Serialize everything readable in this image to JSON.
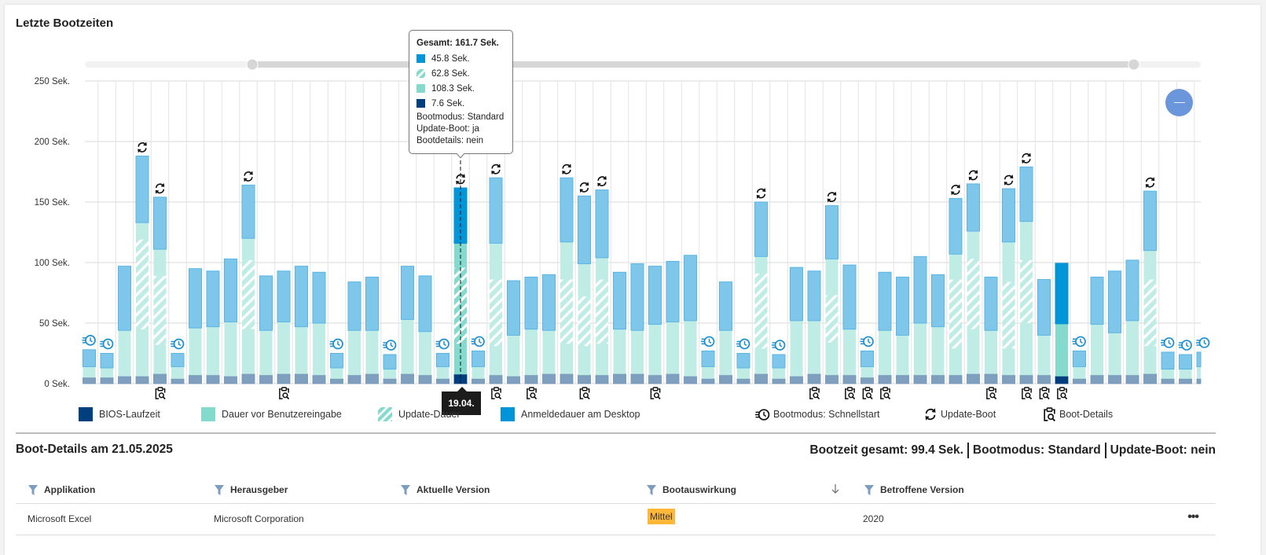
{
  "panel": {
    "title": "Letzte Bootzeiten"
  },
  "tooltip": {
    "title": "Gesamt: 161.7 Sek.",
    "rows": [
      {
        "series": "Anmeldedauer am Desktop",
        "value": "45.8 Sek."
      },
      {
        "series": "Update-Dauer",
        "value": "62.8 Sek."
      },
      {
        "series": "Dauer vor Benutzereingabe",
        "value": "108.3 Sek."
      },
      {
        "series": "BIOS-Laufzeit",
        "value": "7.6 Sek."
      }
    ],
    "lines": [
      "Bootmodus: Standard",
      "Update-Boot: ja",
      "Bootdetails: nein"
    ]
  },
  "hover_date": "19.04.",
  "zoom_out_button": {
    "icon": "minus-icon"
  },
  "colors": {
    "bios": "#7f9fbf",
    "bios_active": "#003f7f",
    "before": "#bfece5",
    "before_active": "#84dbcd",
    "desktop": "#7fc7ea",
    "desktop_active": "#0095d9",
    "desktop_border": "#5ab5e3",
    "fast_icon": "#1d8fd0",
    "badge_mittel": "#ffb83a",
    "zoom_button": "#6b96dc"
  },
  "legend": [
    {
      "name": "BIOS-Laufzeit",
      "swatch": "bios"
    },
    {
      "name": "Dauer vor Benutzereingabe",
      "swatch": "before"
    },
    {
      "name": "Update-Dauer",
      "swatch": "hatch"
    },
    {
      "name": "Anmeldedauer am Desktop",
      "swatch": "desktop"
    },
    {
      "name": "Bootmodus: Schnellstart",
      "icon": "fast-boot-icon"
    },
    {
      "name": "Update-Boot",
      "icon": "update-icon"
    },
    {
      "name": "Boot-Details",
      "icon": "boot-details-icon"
    }
  ],
  "chart_data": {
    "type": "bar",
    "stacked": true,
    "title": "Letzte Bootzeiten",
    "ylabel": "",
    "ylim": [
      0,
      250
    ],
    "yticks": [
      "0 Sek.",
      "50 Sek.",
      "100 Sek.",
      "150 Sek.",
      "200 Sek.",
      "250 Sek."
    ],
    "ytick_values": [
      0,
      50,
      100,
      150,
      200,
      250
    ],
    "grid": true,
    "slider_range": [
      0.15,
      0.94
    ],
    "highlighted_index": 21,
    "selected_index": 55,
    "series_names": [
      "BIOS-Laufzeit",
      "Dauer vor Benutzereingabe",
      "Update-Dauer",
      "Anmeldedauer am Desktop"
    ],
    "bars": [
      {
        "bios": 5,
        "before": 14,
        "total": 28,
        "fast": true
      },
      {
        "bios": 5,
        "before": 13,
        "total": 25,
        "fast": true
      },
      {
        "bios": 6,
        "before": 44,
        "total": 97
      },
      {
        "bios": 6,
        "before": 133,
        "total": 188,
        "update": [
          45,
          119
        ],
        "update_boot": true
      },
      {
        "bios": 8,
        "before": 111,
        "total": 154,
        "update": [
          32,
          89
        ],
        "update_boot": true,
        "details": true
      },
      {
        "bios": 4,
        "before": 14,
        "total": 25,
        "fast": true
      },
      {
        "bios": 7,
        "before": 46,
        "total": 95
      },
      {
        "bios": 7,
        "before": 47,
        "total": 93
      },
      {
        "bios": 6,
        "before": 51,
        "total": 103
      },
      {
        "bios": 8,
        "before": 120,
        "total": 164,
        "update": [
          45,
          102
        ],
        "update_boot": true
      },
      {
        "bios": 7,
        "before": 44,
        "total": 89
      },
      {
        "bios": 8,
        "before": 51,
        "total": 93,
        "details": true
      },
      {
        "bios": 8,
        "before": 47,
        "total": 97
      },
      {
        "bios": 7,
        "before": 50,
        "total": 92
      },
      {
        "bios": 4,
        "before": 13,
        "total": 25,
        "fast": true
      },
      {
        "bios": 7,
        "before": 44,
        "total": 84
      },
      {
        "bios": 8,
        "before": 44,
        "total": 88
      },
      {
        "bios": 4,
        "before": 12,
        "total": 24,
        "fast": true
      },
      {
        "bios": 8,
        "before": 53,
        "total": 97
      },
      {
        "bios": 7,
        "before": 43,
        "total": 89
      },
      {
        "bios": 4,
        "before": 14,
        "total": 25,
        "fast": true
      },
      {
        "bios": 7.6,
        "before": 115.9,
        "total": 161.7,
        "update": [
          33,
          95.8
        ],
        "update_boot": true
      },
      {
        "bios": 4,
        "before": 14,
        "total": 27,
        "fast": true
      },
      {
        "bios": 7,
        "before": 116,
        "total": 170,
        "update": [
          31,
          86
        ],
        "update_boot": true,
        "details": true
      },
      {
        "bios": 6,
        "before": 40,
        "total": 85
      },
      {
        "bios": 7,
        "before": 45,
        "total": 88,
        "details": true
      },
      {
        "bios": 8,
        "before": 44,
        "total": 90
      },
      {
        "bios": 8,
        "before": 117,
        "total": 170,
        "update": [
          33,
          86
        ],
        "update_boot": true
      },
      {
        "bios": 7,
        "before": 99,
        "total": 155,
        "update": [
          31,
          72
        ],
        "update_boot": true,
        "details": true
      },
      {
        "bios": 7,
        "before": 104,
        "total": 160,
        "update": [
          33,
          86
        ],
        "update_boot": true
      },
      {
        "bios": 8,
        "before": 45,
        "total": 92
      },
      {
        "bios": 8,
        "before": 44,
        "total": 99
      },
      {
        "bios": 7,
        "before": 49,
        "total": 97,
        "details": true
      },
      {
        "bios": 8,
        "before": 51,
        "total": 101
      },
      {
        "bios": 6,
        "before": 52,
        "total": 106
      },
      {
        "bios": 4,
        "before": 14,
        "total": 27,
        "fast": true
      },
      {
        "bios": 7,
        "before": 44,
        "total": 84
      },
      {
        "bios": 4,
        "before": 13,
        "total": 25,
        "fast": true
      },
      {
        "bios": 8,
        "before": 105,
        "total": 150,
        "update": [
          29,
          91
        ],
        "update_boot": true
      },
      {
        "bios": 4,
        "before": 13,
        "total": 24,
        "fast": true
      },
      {
        "bios": 6,
        "before": 52,
        "total": 96
      },
      {
        "bios": 8,
        "before": 52,
        "total": 93,
        "details": true
      },
      {
        "bios": 7,
        "before": 103,
        "total": 147,
        "update": [
          34,
          73
        ],
        "update_boot": true
      },
      {
        "bios": 7,
        "before": 45,
        "total": 98,
        "details": true
      },
      {
        "bios": 5,
        "before": 14,
        "total": 27,
        "fast": true,
        "details": true
      },
      {
        "bios": 7,
        "before": 44,
        "total": 92,
        "details": true
      },
      {
        "bios": 7,
        "before": 40,
        "total": 88
      },
      {
        "bios": 7,
        "before": 50,
        "total": 105
      },
      {
        "bios": 7,
        "before": 47,
        "total": 90
      },
      {
        "bios": 7,
        "before": 107,
        "total": 153,
        "update": [
          29,
          86
        ],
        "update_boot": true
      },
      {
        "bios": 8,
        "before": 126,
        "total": 165,
        "update": [
          45,
          103
        ],
        "update_boot": true
      },
      {
        "bios": 8,
        "before": 44,
        "total": 88,
        "details": true
      },
      {
        "bios": 7,
        "before": 117,
        "total": 161,
        "update": [
          29,
          84
        ],
        "update_boot": true
      },
      {
        "bios": 7,
        "before": 134,
        "total": 179,
        "update": [
          50,
          102
        ],
        "update_boot": true,
        "details": true
      },
      {
        "bios": 7,
        "before": 40,
        "total": 86,
        "details": true
      },
      {
        "bios": 6,
        "before": 49.4,
        "total": 99.4,
        "details": true
      },
      {
        "bios": 4,
        "before": 14,
        "total": 27,
        "fast": true
      },
      {
        "bios": 7,
        "before": 49,
        "total": 88
      },
      {
        "bios": 7,
        "before": 42,
        "total": 93
      },
      {
        "bios": 7,
        "before": 52,
        "total": 102
      },
      {
        "bios": 8,
        "before": 110,
        "total": 159,
        "update": [
          31,
          86
        ],
        "update_boot": true
      },
      {
        "bios": 4,
        "before": 12,
        "total": 26,
        "fast": true
      },
      {
        "bios": 4,
        "before": 12,
        "total": 24,
        "fast": true
      },
      {
        "bios": 4,
        "before": 14,
        "total": 26,
        "fast": true
      }
    ]
  },
  "details": {
    "title": "Boot-Details am 21.05.2025",
    "summary": [
      "Bootzeit gesamt: 99.4 Sek.",
      "Bootmodus: Standard",
      "Update-Boot: nein"
    ],
    "columns": [
      {
        "label": "Applikation",
        "filter": true
      },
      {
        "label": "Herausgeber",
        "filter": true
      },
      {
        "label": "Aktuelle Version",
        "filter": true
      },
      {
        "label": "Bootauswirkung",
        "filter": true,
        "sort": "desc"
      },
      {
        "label": "Betroffene Version",
        "filter": true
      }
    ],
    "rows": [
      {
        "app": "Microsoft Excel",
        "publisher": "Microsoft Corporation",
        "current_version": "",
        "impact": "Mittel",
        "affected_version": "2020"
      }
    ]
  }
}
